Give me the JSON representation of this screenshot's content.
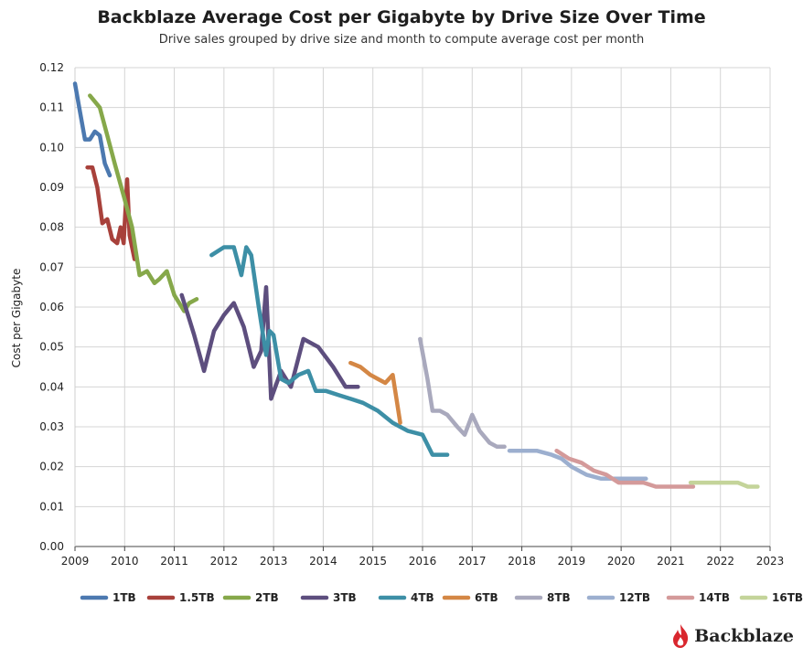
{
  "title": "Backblaze Average Cost per Gigabyte by Drive Size Over Time",
  "subtitle": "Drive sales grouped by drive size and month to compute average cost per month",
  "brand": {
    "name": "Backblaze",
    "icon": "flame-logo",
    "color": "#d9272e"
  },
  "chart_data": {
    "type": "line",
    "ylabel": "Cost per Gigabyte",
    "xlim": [
      2009,
      2023
    ],
    "ylim": [
      0,
      0.12
    ],
    "grid": true,
    "legend_position": "bottom",
    "x_ticks": [
      "2009",
      "2010",
      "2011",
      "2012",
      "2013",
      "2014",
      "2015",
      "2016",
      "2017",
      "2018",
      "2019",
      "2020",
      "2021",
      "2022",
      "2023"
    ],
    "y_ticks": [
      "0.00",
      "0.01",
      "0.02",
      "0.03",
      "0.04",
      "0.05",
      "0.06",
      "0.07",
      "0.08",
      "0.09",
      "0.10",
      "0.11",
      "0.12"
    ],
    "series": [
      {
        "name": "1TB",
        "color": "#4c79b0",
        "x": [
          2009.0,
          2009.1,
          2009.2,
          2009.3,
          2009.4,
          2009.5,
          2009.6,
          2009.7
        ],
        "y": [
          0.116,
          0.109,
          0.102,
          0.102,
          0.104,
          0.103,
          0.096,
          0.093
        ]
      },
      {
        "name": "1.5TB",
        "color": "#a8413b",
        "x": [
          2009.25,
          2009.35,
          2009.45,
          2009.55,
          2009.65,
          2009.75,
          2009.85,
          2009.92,
          2009.98,
          2010.05,
          2010.1,
          2010.2
        ],
        "y": [
          0.095,
          0.095,
          0.09,
          0.081,
          0.082,
          0.077,
          0.076,
          0.08,
          0.076,
          0.092,
          0.078,
          0.072
        ]
      },
      {
        "name": "2TB",
        "color": "#86a84a",
        "x": [
          2009.3,
          2009.5,
          2009.65,
          2009.8,
          2010.0,
          2010.15,
          2010.3,
          2010.45,
          2010.6,
          2010.7,
          2010.85,
          2011.0,
          2011.2,
          2011.3,
          2011.45
        ],
        "y": [
          0.113,
          0.11,
          0.103,
          0.096,
          0.087,
          0.08,
          0.068,
          0.069,
          0.066,
          0.067,
          0.069,
          0.063,
          0.059,
          0.061,
          0.062
        ]
      },
      {
        "name": "3TB",
        "color": "#5d4e7e",
        "x": [
          2011.15,
          2011.3,
          2011.4,
          2011.6,
          2011.8,
          2012.0,
          2012.2,
          2012.4,
          2012.6,
          2012.75,
          2012.85,
          2012.95,
          2013.15,
          2013.35,
          2013.6,
          2013.9,
          2014.2,
          2014.45,
          2014.7
        ],
        "y": [
          0.063,
          0.057,
          0.053,
          0.044,
          0.054,
          0.058,
          0.061,
          0.055,
          0.045,
          0.049,
          0.065,
          0.037,
          0.044,
          0.04,
          0.052,
          0.05,
          0.045,
          0.04,
          0.04
        ]
      },
      {
        "name": "4TB",
        "color": "#3d8fa6",
        "x": [
          2011.75,
          2012.0,
          2012.2,
          2012.35,
          2012.45,
          2012.55,
          2012.7,
          2012.85,
          2012.92,
          2013.0,
          2013.15,
          2013.3,
          2013.5,
          2013.7,
          2013.85,
          2014.05,
          2014.3,
          2014.55,
          2014.8,
          2015.1,
          2015.4,
          2015.7,
          2016.0,
          2016.2,
          2016.5
        ],
        "y": [
          0.073,
          0.075,
          0.075,
          0.068,
          0.075,
          0.073,
          0.06,
          0.048,
          0.054,
          0.053,
          0.042,
          0.041,
          0.043,
          0.044,
          0.039,
          0.039,
          0.038,
          0.037,
          0.036,
          0.034,
          0.031,
          0.029,
          0.028,
          0.023,
          0.023
        ]
      },
      {
        "name": "6TB",
        "color": "#d48745",
        "x": [
          2014.55,
          2014.75,
          2014.95,
          2015.1,
          2015.25,
          2015.4,
          2015.55
        ],
        "y": [
          0.046,
          0.045,
          0.043,
          0.042,
          0.041,
          0.043,
          0.031
        ]
      },
      {
        "name": "8TB",
        "color": "#a9a9bd",
        "x": [
          2015.95,
          2016.1,
          2016.2,
          2016.35,
          2016.5,
          2016.7,
          2016.85,
          2017.0,
          2017.15,
          2017.35,
          2017.5,
          2017.65
        ],
        "y": [
          0.052,
          0.042,
          0.034,
          0.034,
          0.033,
          0.03,
          0.028,
          0.033,
          0.029,
          0.026,
          0.025,
          0.025
        ]
      },
      {
        "name": "12TB",
        "color": "#9cafcf",
        "x": [
          2017.75,
          2018.0,
          2018.3,
          2018.6,
          2018.8,
          2019.0,
          2019.3,
          2019.6,
          2019.9,
          2020.2,
          2020.5
        ],
        "y": [
          0.024,
          0.024,
          0.024,
          0.023,
          0.022,
          0.02,
          0.018,
          0.017,
          0.017,
          0.017,
          0.017
        ]
      },
      {
        "name": "14TB",
        "color": "#d49a9a",
        "x": [
          2018.7,
          2018.95,
          2019.2,
          2019.45,
          2019.7,
          2019.95,
          2020.2,
          2020.45,
          2020.7,
          2020.95,
          2021.2,
          2021.45
        ],
        "y": [
          0.024,
          0.022,
          0.021,
          0.019,
          0.018,
          0.016,
          0.016,
          0.016,
          0.015,
          0.015,
          0.015,
          0.015
        ]
      },
      {
        "name": "16TB",
        "color": "#c4d49a",
        "x": [
          2021.4,
          2021.6,
          2021.85,
          2022.1,
          2022.35,
          2022.55,
          2022.75
        ],
        "y": [
          0.016,
          0.016,
          0.016,
          0.016,
          0.016,
          0.015,
          0.015
        ]
      }
    ]
  }
}
